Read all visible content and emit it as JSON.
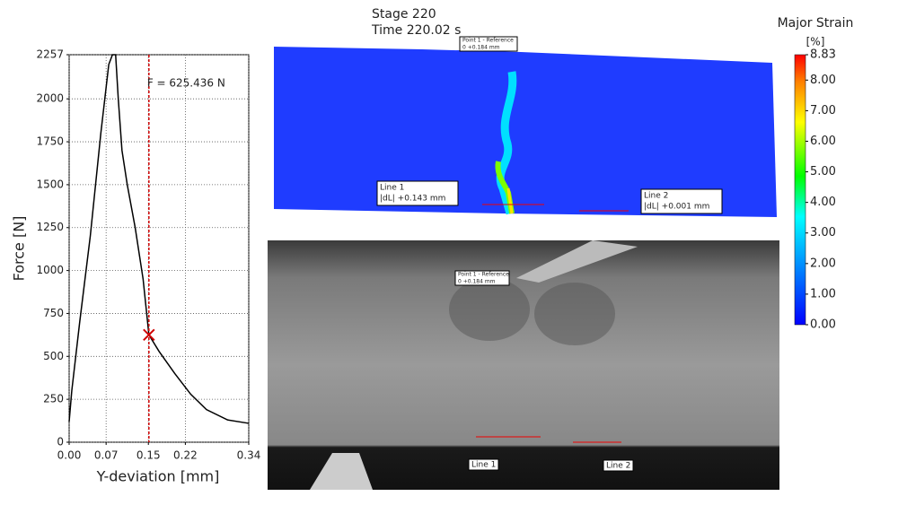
{
  "chart_data": {
    "type": "line",
    "ylabel": "Force [N]",
    "xlabel": "Y-deviation [mm]",
    "xlim": [
      0,
      0.34
    ],
    "ylim": [
      0,
      2257
    ],
    "xticks": [
      {
        "value": 0,
        "label": "0.00"
      },
      0.07,
      0.15,
      0.22,
      0.34
    ],
    "yticks": [
      0,
      250,
      500,
      750,
      1000,
      1250,
      1500,
      1750,
      2000,
      2257
    ],
    "grid": true,
    "series": [
      {
        "color": "#000000",
        "x": [
          0,
          0.005,
          0.02,
          0.04,
          0.06,
          0.075,
          0.082,
          0.088,
          0.093,
          0.1,
          0.11,
          0.125,
          0.14,
          0.151,
          0.17,
          0.2,
          0.23,
          0.26,
          0.3,
          0.34
        ],
        "values": [
          120,
          300,
          700,
          1200,
          1800,
          2200,
          2257,
          2257,
          2000,
          1700,
          1500,
          1250,
          950,
          625.436,
          530,
          400,
          280,
          190,
          130,
          110
        ]
      }
    ],
    "cursor": {
      "x": 0.151,
      "y": 625.436,
      "label": "F = 625.436 N",
      "color": "#d00000"
    }
  },
  "stage": {
    "stage": "Stage 220",
    "time": "Time  220.02 s"
  },
  "colorbar": {
    "title": "Major Strain",
    "unit": "[%]",
    "lim": [
      0,
      8.83
    ],
    "ticks": [
      {
        "value": 0,
        "label": "0.00"
      },
      {
        "value": 1,
        "label": "1.00"
      },
      {
        "value": 2,
        "label": "2.00"
      },
      {
        "value": 3,
        "label": "3.00"
      },
      {
        "value": 4,
        "label": "4.00"
      },
      {
        "value": 5,
        "label": "5.00"
      },
      {
        "value": 6,
        "label": "6.00"
      },
      {
        "value": 7,
        "label": "7.00"
      },
      {
        "value": 8,
        "label": "8.00"
      },
      {
        "value": 8.83,
        "label": "8.83"
      }
    ]
  },
  "annotations": {
    "point": "Point 1 - Reference",
    "point_value": "0   +0.184 mm",
    "line1": "Line 1",
    "line1_value": "|dL| +0.143 mm",
    "line2": "Line 2",
    "line2_value": "|dL| +0.001 mm"
  }
}
